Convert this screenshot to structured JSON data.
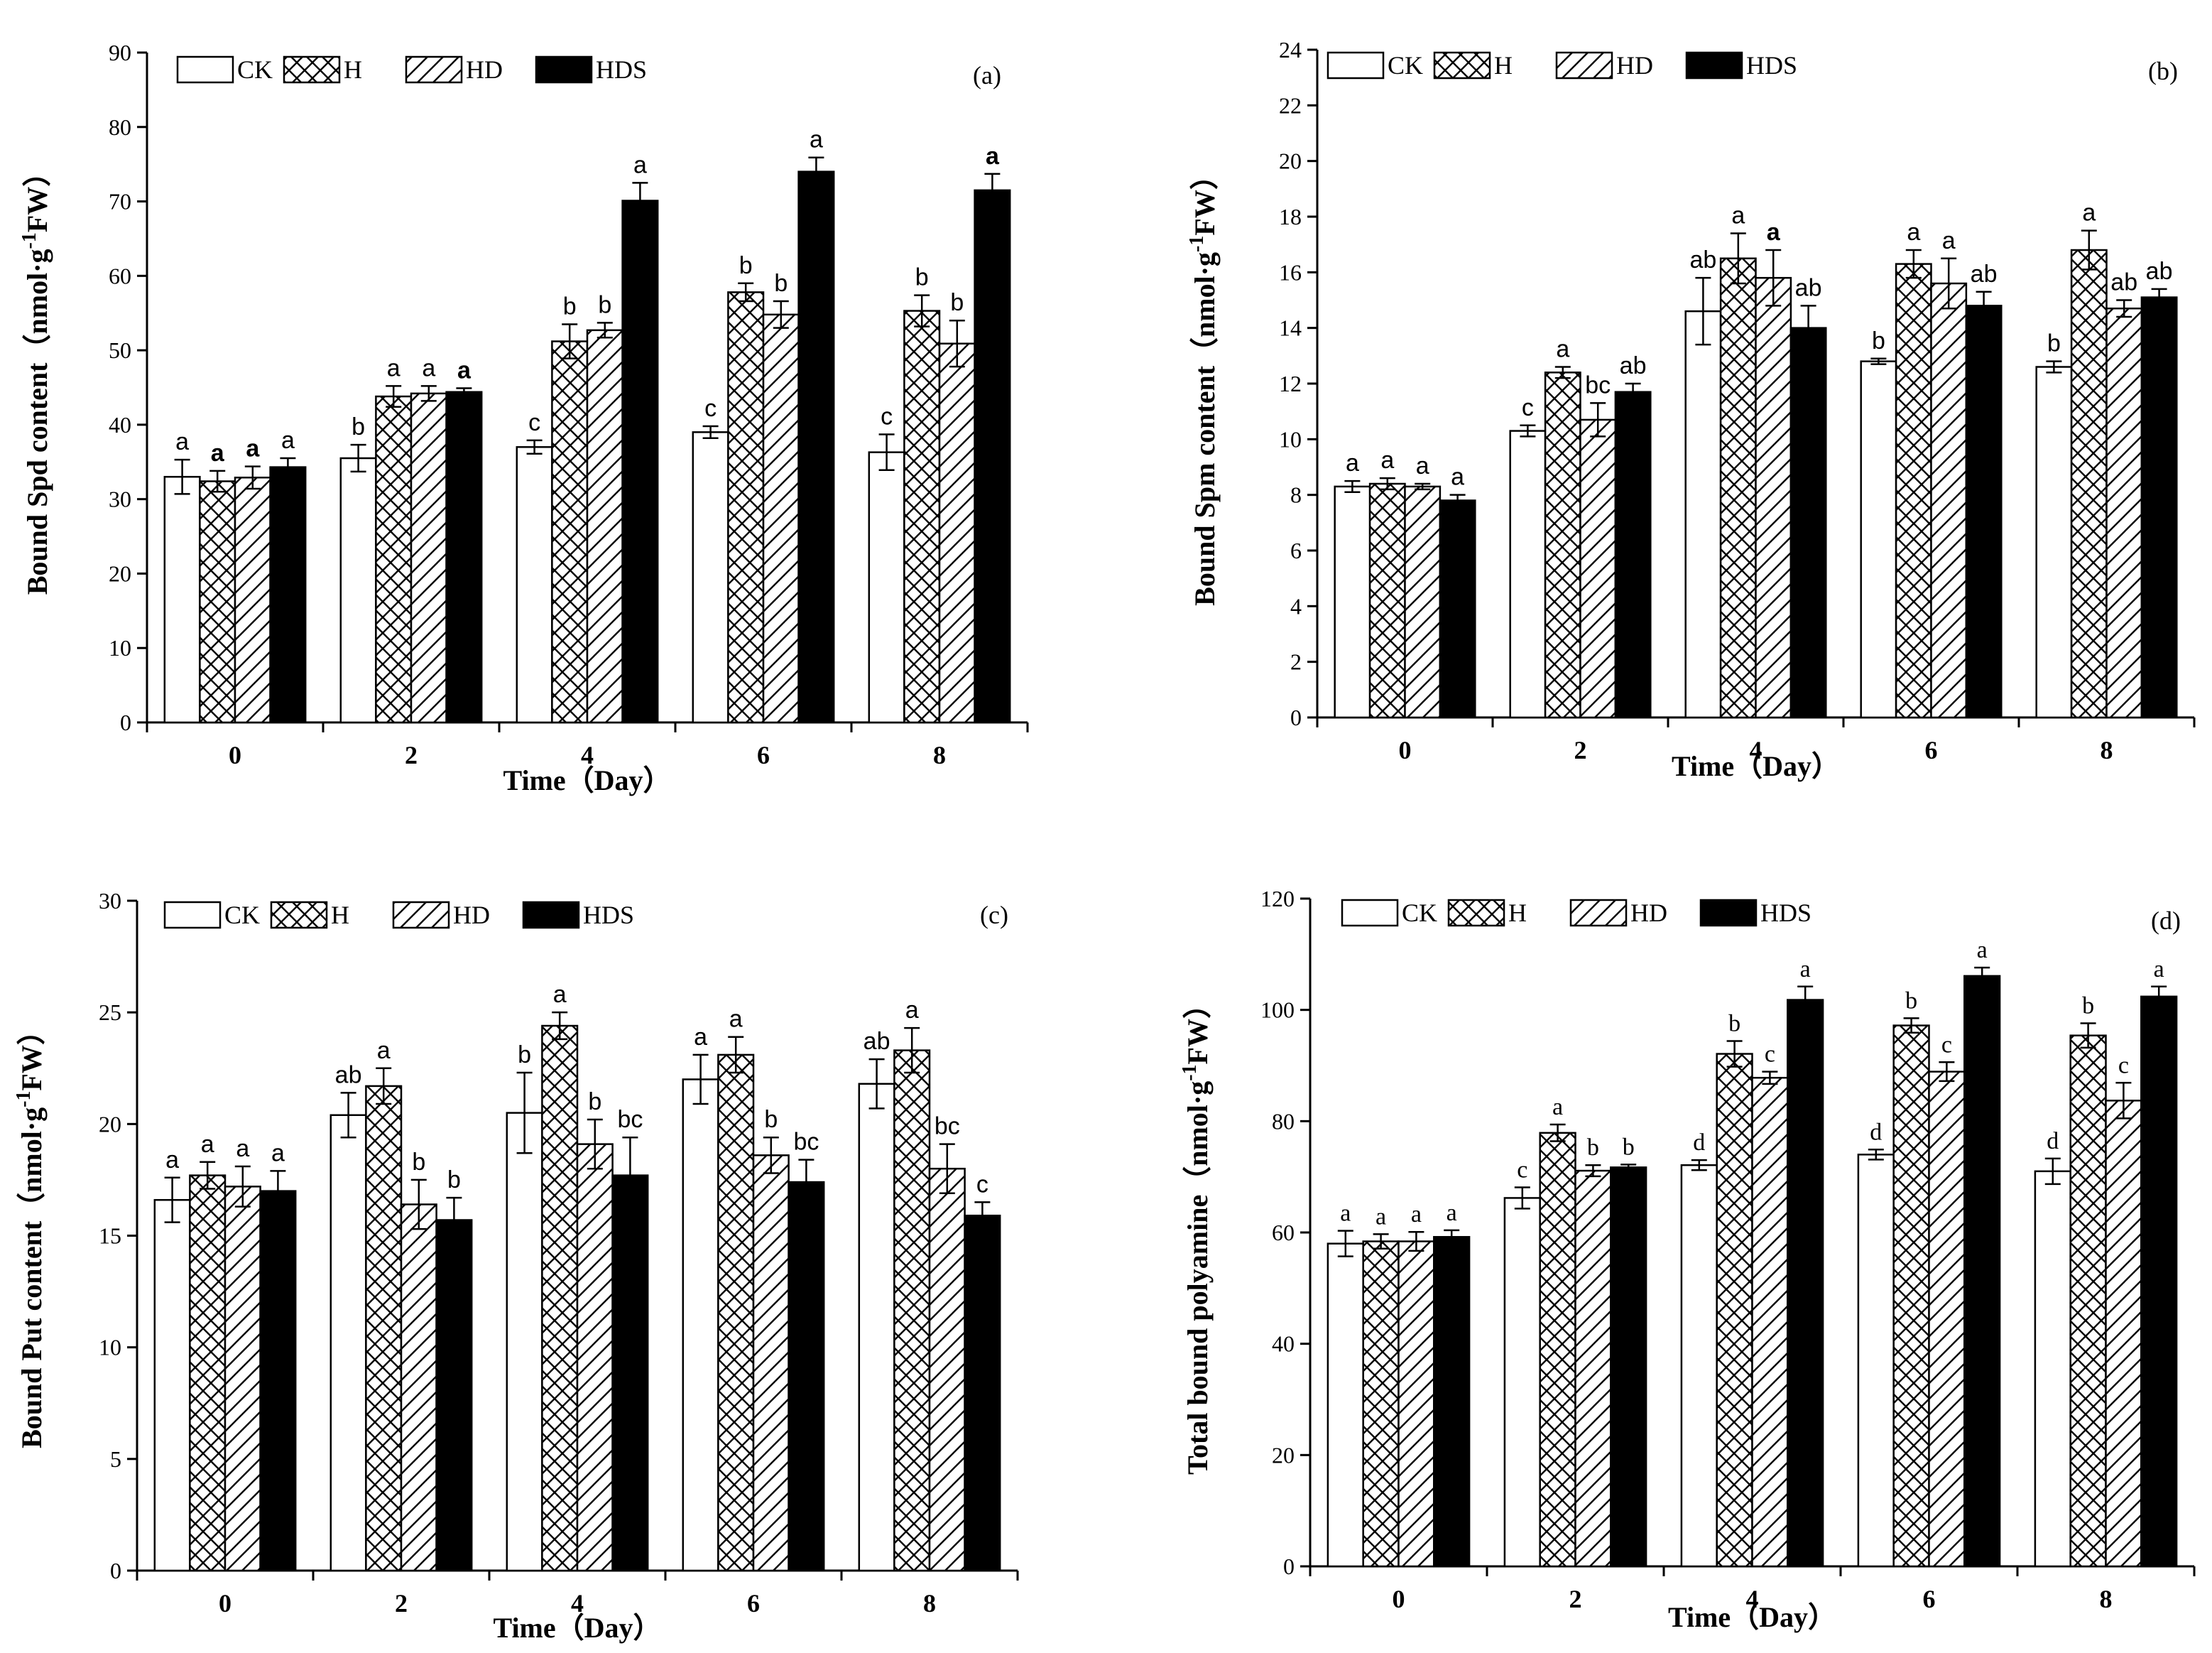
{
  "legend_labels": [
    "CK",
    "H",
    "HD",
    "HDS"
  ],
  "styles": {
    "bar_fill_hds": "#000000",
    "bar_fill_other": "#ffffff",
    "axis_color": "#000000"
  },
  "chart_data": [
    {
      "id": "a",
      "type": "bar",
      "panel_label": "(a)",
      "title": "",
      "xlabel": "Time（Day）",
      "ylabel": "Bound Spd content（nmol·g",
      "ylabel_sup": "-1",
      "ylabel_tail": "FW）",
      "ylim": [
        0,
        90
      ],
      "yticks": [
        0,
        10,
        20,
        30,
        40,
        50,
        60,
        70,
        80,
        90
      ],
      "categories": [
        "0",
        "2",
        "4",
        "6",
        "8"
      ],
      "series": [
        {
          "name": "CK",
          "values": [
            33.0,
            35.5,
            37.0,
            39.0,
            36.3
          ],
          "errors": [
            2.3,
            1.8,
            0.9,
            0.8,
            2.4
          ],
          "labels": [
            "a",
            "b",
            "c",
            "c",
            "c"
          ]
        },
        {
          "name": "H",
          "values": [
            32.4,
            43.8,
            51.2,
            57.8,
            55.3
          ],
          "errors": [
            1.4,
            1.4,
            2.3,
            1.2,
            2.1
          ],
          "labels": [
            "a",
            "a",
            "b",
            "b",
            "b"
          ]
        },
        {
          "name": "HD",
          "values": [
            32.9,
            44.2,
            52.7,
            54.8,
            50.9
          ],
          "errors": [
            1.5,
            1.0,
            1.0,
            1.8,
            3.1
          ],
          "labels": [
            "a",
            "a",
            "b",
            "b",
            "b"
          ]
        },
        {
          "name": "HDS",
          "values": [
            34.3,
            44.4,
            70.1,
            74.0,
            71.5
          ],
          "errors": [
            1.2,
            0.5,
            2.4,
            1.9,
            2.2
          ],
          "labels": [
            "a",
            "a",
            "a",
            "a",
            "a"
          ]
        }
      ]
    },
    {
      "id": "b",
      "type": "bar",
      "panel_label": "(b)",
      "title": "",
      "xlabel": "Time（Day）",
      "ylabel": "Bound Spm content（nmol·g",
      "ylabel_sup": "-1",
      "ylabel_tail": "FW）",
      "ylim": [
        0,
        24
      ],
      "yticks": [
        0,
        2,
        4,
        6,
        8,
        10,
        12,
        14,
        16,
        18,
        20,
        22,
        24
      ],
      "categories": [
        "0",
        "2",
        "4",
        "6",
        "8"
      ],
      "series": [
        {
          "name": "CK",
          "values": [
            8.3,
            10.3,
            14.6,
            12.8,
            12.6
          ],
          "errors": [
            0.2,
            0.2,
            1.2,
            0.1,
            0.2
          ],
          "labels": [
            "a",
            "c",
            "ab",
            "b",
            "b"
          ]
        },
        {
          "name": "H",
          "values": [
            8.4,
            12.4,
            16.5,
            16.3,
            16.8
          ],
          "errors": [
            0.2,
            0.2,
            0.9,
            0.5,
            0.7
          ],
          "labels": [
            "a",
            "a",
            "a",
            "a",
            "a"
          ]
        },
        {
          "name": "HD",
          "values": [
            8.3,
            10.7,
            15.8,
            15.6,
            14.7
          ],
          "errors": [
            0.1,
            0.6,
            1.0,
            0.9,
            0.3
          ],
          "labels": [
            "a",
            "bc",
            "a",
            "a",
            "ab"
          ]
        },
        {
          "name": "HDS",
          "values": [
            7.8,
            11.7,
            14.0,
            14.8,
            15.1
          ],
          "errors": [
            0.2,
            0.3,
            0.8,
            0.5,
            0.3
          ],
          "labels": [
            "a",
            "ab",
            "ab",
            "ab",
            "ab"
          ]
        }
      ]
    },
    {
      "id": "c",
      "type": "bar",
      "panel_label": "(c)",
      "title": "",
      "xlabel": "Time（Day）",
      "ylabel": "Bound Put content（nmol·g",
      "ylabel_sup": "-1",
      "ylabel_tail": "FW）",
      "ylim": [
        0,
        30
      ],
      "yticks": [
        0,
        5,
        10,
        15,
        20,
        25,
        30
      ],
      "categories": [
        "0",
        "2",
        "4",
        "6",
        "8"
      ],
      "series": [
        {
          "name": "CK",
          "values": [
            16.6,
            20.4,
            20.5,
            22.0,
            21.8
          ],
          "errors": [
            1.0,
            1.0,
            1.8,
            1.1,
            1.1
          ],
          "labels": [
            "a",
            "ab",
            "b",
            "a",
            "ab"
          ]
        },
        {
          "name": "H",
          "values": [
            17.7,
            21.7,
            24.4,
            23.1,
            23.3
          ],
          "errors": [
            0.6,
            0.8,
            0.6,
            0.8,
            1.0
          ],
          "labels": [
            "a",
            "a",
            "a",
            "a",
            "a"
          ]
        },
        {
          "name": "HD",
          "values": [
            17.2,
            16.4,
            19.1,
            18.6,
            18.0
          ],
          "errors": [
            0.9,
            1.1,
            1.1,
            0.8,
            1.1
          ],
          "labels": [
            "a",
            "b",
            "b",
            "b",
            "bc"
          ]
        },
        {
          "name": "HDS",
          "values": [
            17.0,
            15.7,
            17.7,
            17.4,
            15.9
          ],
          "errors": [
            0.9,
            1.0,
            1.7,
            1.0,
            0.6
          ],
          "labels": [
            "a",
            "b",
            "bc",
            "bc",
            "c"
          ]
        }
      ]
    },
    {
      "id": "d",
      "type": "bar",
      "panel_label": "(d)",
      "title": "",
      "xlabel": "Time（Day）",
      "ylabel": "Total bound polyamine（nmol·g",
      "ylabel_sup": "-1",
      "ylabel_tail": "FW）",
      "ylim": [
        0,
        120
      ],
      "yticks": [
        0,
        20,
        40,
        60,
        80,
        100,
        120
      ],
      "categories": [
        "0",
        "2",
        "4",
        "6",
        "8"
      ],
      "series": [
        {
          "name": "CK",
          "values": [
            58.0,
            66.2,
            72.1,
            74.0,
            71.0
          ],
          "errors": [
            2.3,
            1.9,
            0.9,
            0.9,
            2.3
          ],
          "labels": [
            "a",
            "c",
            "d",
            "d",
            "d"
          ]
        },
        {
          "name": "H",
          "values": [
            58.4,
            77.9,
            92.1,
            97.2,
            95.4
          ],
          "errors": [
            1.3,
            1.5,
            2.3,
            1.3,
            2.2
          ],
          "labels": [
            "a",
            "a",
            "b",
            "b",
            "b"
          ]
        },
        {
          "name": "HD",
          "values": [
            58.4,
            71.1,
            87.8,
            88.9,
            83.7
          ],
          "errors": [
            1.7,
            1.0,
            1.1,
            1.7,
            3.2
          ],
          "labels": [
            "a",
            "b",
            "c",
            "c",
            "c"
          ]
        },
        {
          "name": "HDS",
          "values": [
            59.2,
            71.7,
            101.8,
            106.1,
            102.4
          ],
          "errors": [
            1.2,
            0.5,
            2.4,
            1.5,
            1.8
          ],
          "labels": [
            "a",
            "b",
            "a",
            "a",
            "a"
          ]
        }
      ]
    }
  ]
}
